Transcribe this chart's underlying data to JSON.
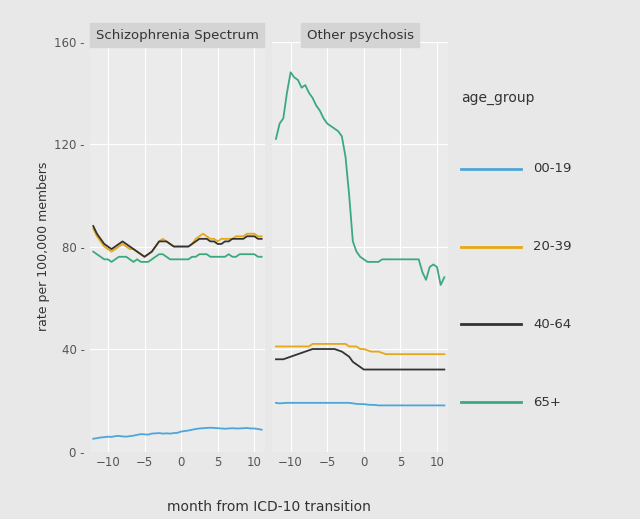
{
  "xlabel": "month from ICD-10 transition",
  "ylabel": "rate per 100,000 members",
  "panel_titles": [
    "Schizophrenia Spectrum",
    "Other psychosis"
  ],
  "legend_title": "age_group",
  "legend_labels": [
    "00-19",
    "20-39",
    "40-64",
    "65+"
  ],
  "colors": {
    "00-19": "#4da6d8",
    "20-39": "#e6a817",
    "40-64": "#333333",
    "65+": "#3aaa7e"
  },
  "ylim": [
    0,
    160
  ],
  "yticks": [
    0,
    40,
    80,
    120,
    160
  ],
  "x_months": [
    -12,
    -11.5,
    -11,
    -10.5,
    -10,
    -9.5,
    -9,
    -8.5,
    -8,
    -7.5,
    -7,
    -6.5,
    -6,
    -5.5,
    -5,
    -4.5,
    -4,
    -3.5,
    -3,
    -2.5,
    -2,
    -1.5,
    -1,
    -0.5,
    0,
    0.5,
    1,
    1.5,
    2,
    2.5,
    3,
    3.5,
    4,
    4.5,
    5,
    5.5,
    6,
    6.5,
    7,
    7.5,
    8,
    8.5,
    9,
    9.5,
    10,
    10.5,
    11
  ],
  "schizophrenia": {
    "00-19": [
      5,
      5.2,
      5.5,
      5.6,
      5.8,
      5.7,
      6,
      6.1,
      5.9,
      5.8,
      6,
      6.2,
      6.5,
      6.8,
      6.7,
      6.6,
      7,
      7.1,
      7.2,
      7,
      7.1,
      7,
      7.2,
      7.3,
      7.8,
      8,
      8.2,
      8.5,
      8.8,
      9,
      9.1,
      9.2,
      9.3,
      9.2,
      9.1,
      9,
      8.9,
      9,
      9.1,
      9,
      9,
      9.1,
      9.2,
      9,
      9,
      8.8,
      8.5
    ],
    "20-39": [
      87,
      84,
      82,
      80,
      79,
      78,
      79,
      80,
      81,
      80,
      79,
      79,
      78,
      77,
      76,
      77,
      78,
      80,
      82,
      83,
      82,
      81,
      80,
      80,
      80,
      80,
      80,
      81,
      83,
      84,
      85,
      84,
      83,
      83,
      82,
      83,
      83,
      83,
      83,
      84,
      84,
      84,
      85,
      85,
      85,
      84,
      84
    ],
    "40-64": [
      88,
      85,
      83,
      81,
      80,
      79,
      80,
      81,
      82,
      81,
      80,
      79,
      78,
      77,
      76,
      77,
      78,
      80,
      82,
      82,
      82,
      81,
      80,
      80,
      80,
      80,
      80,
      81,
      82,
      83,
      83,
      83,
      82,
      82,
      81,
      81,
      82,
      82,
      83,
      83,
      83,
      83,
      84,
      84,
      84,
      83,
      83
    ],
    "65+": [
      78,
      77,
      76,
      75,
      75,
      74,
      75,
      76,
      76,
      76,
      75,
      74,
      75,
      74,
      74,
      74,
      75,
      76,
      77,
      77,
      76,
      75,
      75,
      75,
      75,
      75,
      75,
      76,
      76,
      77,
      77,
      77,
      76,
      76,
      76,
      76,
      76,
      77,
      76,
      76,
      77,
      77,
      77,
      77,
      77,
      76,
      76
    ]
  },
  "other_psychosis": {
    "00-19": [
      19,
      18.8,
      18.9,
      19,
      19,
      19,
      19,
      19,
      19,
      19,
      19,
      19,
      19,
      19,
      19,
      19,
      19,
      19,
      19,
      19,
      19,
      18.8,
      18.6,
      18.5,
      18.5,
      18.3,
      18.2,
      18.2,
      18,
      18,
      18,
      18,
      18,
      18,
      18,
      18,
      18,
      18,
      18,
      18,
      18,
      18,
      18,
      18,
      18,
      18,
      18
    ],
    "20-39": [
      41,
      41,
      41,
      41,
      41,
      41,
      41,
      41,
      41,
      41,
      42,
      42,
      42,
      42,
      42,
      42,
      42,
      42,
      42,
      42,
      41,
      41,
      41,
      40,
      40,
      39.5,
      39,
      39,
      39,
      38.5,
      38,
      38,
      38,
      38,
      38,
      38,
      38,
      38,
      38,
      38,
      38,
      38,
      38,
      38,
      38,
      38,
      38
    ],
    "40-64": [
      36,
      36,
      36,
      36.5,
      37,
      37.5,
      38,
      38.5,
      39,
      39.5,
      40,
      40,
      40,
      40,
      40,
      40,
      40,
      39.5,
      39,
      38,
      37,
      35,
      34,
      33,
      32,
      32,
      32,
      32,
      32,
      32,
      32,
      32,
      32,
      32,
      32,
      32,
      32,
      32,
      32,
      32,
      32,
      32,
      32,
      32,
      32,
      32,
      32
    ],
    "65+": [
      122,
      128,
      130,
      140,
      148,
      146,
      145,
      142,
      143,
      140,
      138,
      135,
      133,
      130,
      128,
      127,
      126,
      125,
      123,
      115,
      100,
      82,
      78,
      76,
      75,
      74,
      74,
      74,
      74,
      75,
      75,
      75,
      75,
      75,
      75,
      75,
      75,
      75,
      75,
      75,
      70,
      67,
      72,
      73,
      72,
      65,
      68
    ]
  },
  "background_color": "#e8e8e8",
  "panel_bg": "#ebebeb",
  "panel_header_bg": "#d4d4d4",
  "grid_color": "#ffffff",
  "linewidth": 1.3
}
